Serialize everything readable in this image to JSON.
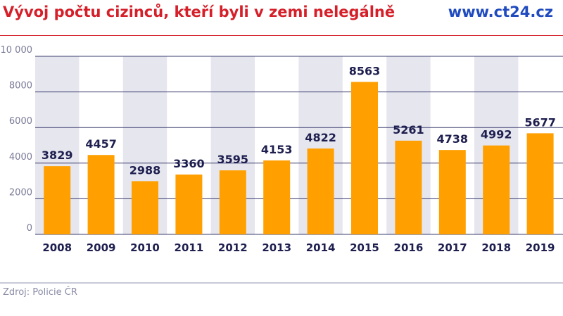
{
  "header": {
    "title": "Vývoj počtu cizinců, kteří byli v zemi nelegálně",
    "brand": "www.ct24.cz"
  },
  "footer": {
    "source": "Zdroj: Policie ČR"
  },
  "colors": {
    "title": "#d5202a",
    "brand": "#1f4bbf",
    "bar": "#ffa000",
    "band": "#e6e6ee",
    "gridline": "#3a3c6e",
    "value_label": "#1e1f4f",
    "axis_label": "#1e1f4f",
    "tick_label": "#7a7b98"
  },
  "chart_data": {
    "type": "bar",
    "categories": [
      "2008",
      "2009",
      "2010",
      "2011",
      "2012",
      "2013",
      "2014",
      "2015",
      "2016",
      "2017",
      "2018",
      "2019"
    ],
    "values": [
      3829,
      4457,
      2988,
      3360,
      3595,
      4153,
      4822,
      8563,
      5261,
      4738,
      4992,
      5677
    ],
    "value_labels": [
      "3829",
      "4457",
      "2988",
      "3360",
      "3595",
      "4153",
      "4822",
      "8563",
      "5261",
      "4738",
      "4992",
      "5677"
    ],
    "y_ticks": [
      0,
      2000,
      4000,
      6000,
      8000,
      10000
    ],
    "y_tick_labels": [
      "0",
      "2000",
      "4000",
      "6000",
      "8000",
      "10 000"
    ],
    "ylim": [
      0,
      10000
    ],
    "grid": true,
    "alternating_bands": true,
    "title": "Vývoj počtu cizinců, kteří byli v zemi nelegálně",
    "xlabel": "",
    "ylabel": ""
  }
}
